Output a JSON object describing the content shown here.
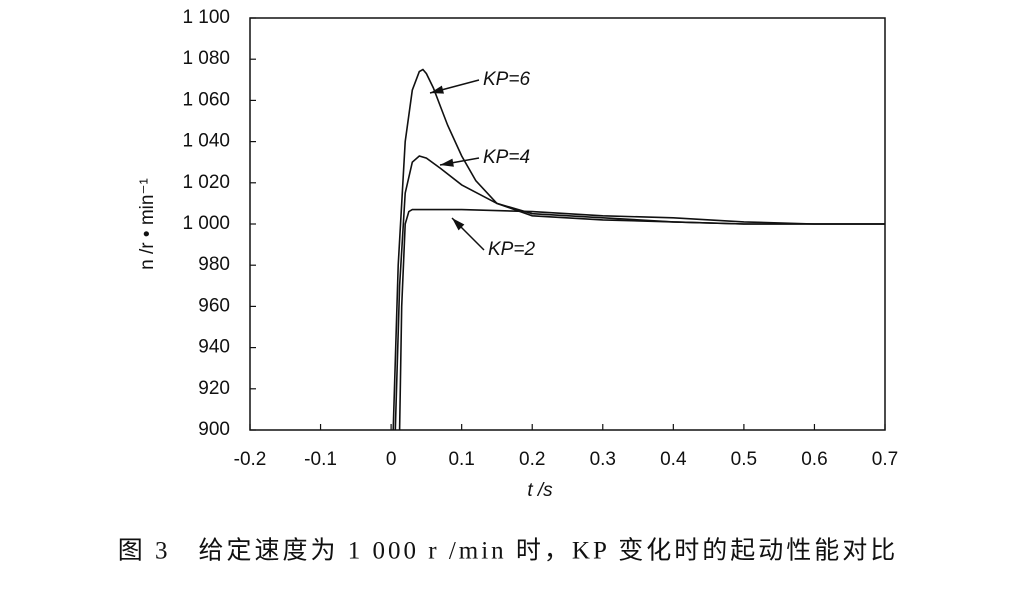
{
  "chart_data": {
    "type": "line",
    "x_label": "t /s",
    "y_label": "n /r • min⁻¹",
    "caption": "图 3　给定速度为 1 000 r /min 时，KP 变化时的起动性能对比",
    "xlim": [
      -0.2,
      0.7
    ],
    "xticks": [
      -0.2,
      -0.1,
      0,
      0.1,
      0.2,
      0.3,
      0.4,
      0.5,
      0.6,
      0.7
    ],
    "ylim": [
      900,
      1100
    ],
    "yticks": [
      900,
      920,
      940,
      960,
      980,
      {
        "value": 1000,
        "label": "1 000"
      },
      {
        "value": 1020,
        "label": "1 020"
      },
      {
        "value": 1040,
        "label": "1 040"
      },
      {
        "value": 1060,
        "label": "1 060"
      },
      {
        "value": 1080,
        "label": "1 080"
      },
      {
        "value": 1100,
        "label": "1 100"
      }
    ],
    "series": [
      {
        "name": "KP=6",
        "color": "#111111",
        "x": [
          0.003,
          0.01,
          0.02,
          0.03,
          0.04,
          0.045,
          0.05,
          0.06,
          0.07,
          0.08,
          0.1,
          0.12,
          0.15,
          0.2,
          0.3,
          0.4,
          0.5,
          0.6,
          0.7
        ],
        "values": [
          900,
          980,
          1040,
          1065,
          1074,
          1075,
          1073,
          1066,
          1057,
          1048,
          1033,
          1021,
          1010,
          1004,
          1002,
          1001,
          1000,
          1000,
          1000
        ]
      },
      {
        "name": "KP=4",
        "color": "#111111",
        "x": [
          0.006,
          0.012,
          0.02,
          0.03,
          0.04,
          0.05,
          0.07,
          0.1,
          0.15,
          0.2,
          0.3,
          0.4,
          0.5,
          0.6,
          0.7
        ],
        "values": [
          900,
          970,
          1015,
          1030,
          1033,
          1032,
          1027,
          1019,
          1010,
          1005,
          1003,
          1001,
          1000,
          1000,
          1000
        ]
      },
      {
        "name": "KP=2",
        "color": "#111111",
        "x": [
          0.012,
          0.015,
          0.02,
          0.025,
          0.03,
          0.05,
          0.1,
          0.2,
          0.3,
          0.4,
          0.5,
          0.6,
          0.7
        ],
        "values": [
          900,
          960,
          1000,
          1006,
          1007,
          1007,
          1007,
          1006,
          1004,
          1003,
          1001,
          1000,
          1000
        ]
      }
    ]
  }
}
